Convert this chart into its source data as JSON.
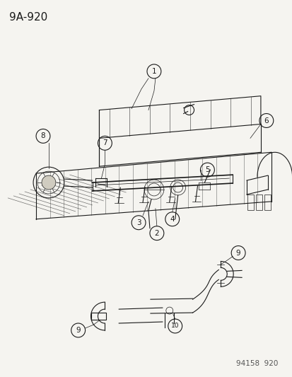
{
  "title": "9A-920",
  "footer": "94158  920",
  "bg_color": "#f5f4f0",
  "line_color": "#1a1a1a",
  "title_fontsize": 11,
  "footer_fontsize": 7.5,
  "label_fontsize": 7.5,
  "fig_w": 4.14,
  "fig_h": 5.33,
  "dpi": 100
}
